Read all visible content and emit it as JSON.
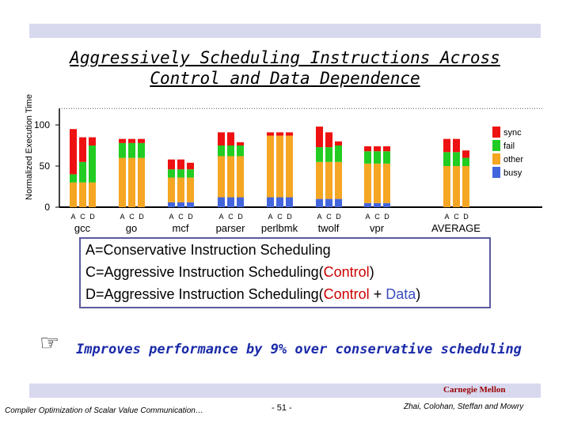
{
  "slide": {
    "title": "Aggressively Scheduling Instructions Across Control and Data Dependence",
    "legend_lines": [
      {
        "prefix": "A=Conservative Instruction Scheduling"
      },
      {
        "prefix": "C=Aggressive Instruction Scheduling(",
        "red": "Control",
        "suffix": ")"
      },
      {
        "prefix": "D=Aggressive Instruction Scheduling(",
        "red": "Control",
        "mid": " + ",
        "blue": "Data",
        "suffix": ")"
      }
    ],
    "bullet": "Improves performance by 9% over conservative scheduling",
    "org": "Carnegie Mellon",
    "footer_left": "Compiler Optimization of Scalar Value Communication…",
    "page": "- 51 -",
    "footer_right": "Zhai, Colohan, Steffan and Mowry"
  },
  "colors": {
    "busy": "#4466dd",
    "other": "#f5a623",
    "fail": "#22cc22",
    "sync": "#ee1111",
    "accent": "#1a2aa8"
  },
  "chart_data": {
    "type": "bar",
    "stacked": true,
    "ylabel": "Normalized Execution Time",
    "yticks": [
      0,
      50,
      100
    ],
    "ylim": [
      0,
      120
    ],
    "groups": [
      "gcc",
      "go",
      "mcf",
      "parser",
      "perlbmk",
      "twolf",
      "vpr",
      "AVERAGE"
    ],
    "bar_labels": [
      "A",
      "C",
      "D"
    ],
    "series": [
      {
        "name": "busy",
        "color": "#4466dd",
        "values": [
          [
            0,
            0,
            0
          ],
          [
            0,
            0,
            0
          ],
          [
            6,
            6,
            6
          ],
          [
            12,
            12,
            12
          ],
          [
            12,
            12,
            12
          ],
          [
            10,
            10,
            10
          ],
          [
            5,
            5,
            5
          ],
          [
            0,
            0,
            0
          ]
        ]
      },
      {
        "name": "other",
        "color": "#f5a623",
        "values": [
          [
            30,
            30,
            30
          ],
          [
            60,
            60,
            60
          ],
          [
            30,
            30,
            30
          ],
          [
            50,
            50,
            50
          ],
          [
            75,
            75,
            75
          ],
          [
            45,
            45,
            45
          ],
          [
            48,
            48,
            48
          ],
          [
            50,
            50,
            50
          ]
        ]
      },
      {
        "name": "fail",
        "color": "#22cc22",
        "values": [
          [
            10,
            25,
            45
          ],
          [
            18,
            18,
            18
          ],
          [
            10,
            10,
            10
          ],
          [
            13,
            13,
            13
          ],
          [
            0,
            0,
            0
          ],
          [
            18,
            18,
            20
          ],
          [
            15,
            15,
            15
          ],
          [
            17,
            17,
            10
          ]
        ]
      },
      {
        "name": "sync",
        "color": "#ee1111",
        "values": [
          [
            55,
            30,
            10
          ],
          [
            5,
            5,
            5
          ],
          [
            12,
            12,
            8
          ],
          [
            16,
            16,
            4
          ],
          [
            4,
            4,
            4
          ],
          [
            25,
            18,
            5
          ],
          [
            6,
            6,
            6
          ],
          [
            16,
            16,
            9
          ]
        ]
      }
    ],
    "legend_position": "right"
  }
}
